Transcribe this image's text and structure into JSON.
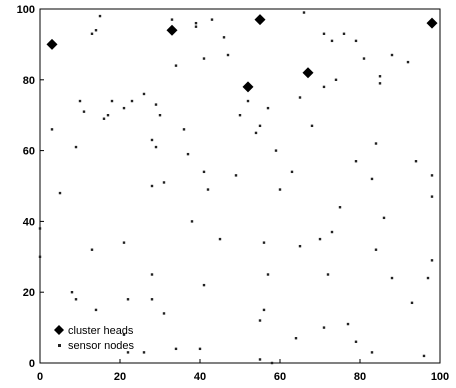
{
  "chart_data": {
    "type": "scatter",
    "title": "",
    "xlabel": "",
    "ylabel": "",
    "xlim": [
      0,
      100
    ],
    "ylim": [
      0,
      100
    ],
    "x_ticks": [
      "0",
      "20",
      "40",
      "60",
      "80",
      "100"
    ],
    "y_ticks": [
      "0",
      "20",
      "40",
      "60",
      "80",
      "100"
    ],
    "grid": false,
    "legend_position": "bottom-left",
    "series": [
      {
        "name": "cluster heads",
        "marker": "diamond",
        "color": "#000000",
        "points": [
          [
            3,
            90
          ],
          [
            33,
            94
          ],
          [
            55,
            97
          ],
          [
            52,
            78
          ],
          [
            67,
            82
          ],
          [
            98,
            96
          ]
        ]
      },
      {
        "name": "sensor nodes",
        "marker": "dot",
        "color": "#222222",
        "points": [
          [
            15,
            98
          ],
          [
            33,
            97
          ],
          [
            39,
            96
          ],
          [
            43,
            97
          ],
          [
            34,
            84
          ],
          [
            41,
            86
          ],
          [
            39,
            95
          ],
          [
            46,
            92
          ],
          [
            47,
            87
          ],
          [
            66,
            99
          ],
          [
            71,
            93
          ],
          [
            73,
            91
          ],
          [
            76,
            93
          ],
          [
            79,
            91
          ],
          [
            81,
            86
          ],
          [
            85,
            81
          ],
          [
            85,
            79
          ],
          [
            88,
            87
          ],
          [
            92,
            85
          ],
          [
            13,
            93
          ],
          [
            14,
            94
          ],
          [
            10,
            74
          ],
          [
            11,
            71
          ],
          [
            16,
            69
          ],
          [
            17,
            70
          ],
          [
            18,
            74
          ],
          [
            23,
            74
          ],
          [
            26,
            76
          ],
          [
            29,
            73
          ],
          [
            30,
            70
          ],
          [
            36,
            66
          ],
          [
            28,
            63
          ],
          [
            29,
            61
          ],
          [
            37,
            59
          ],
          [
            9,
            61
          ],
          [
            3,
            66
          ],
          [
            5,
            48
          ],
          [
            21,
            72
          ],
          [
            28,
            50
          ],
          [
            31,
            51
          ],
          [
            42,
            49
          ],
          [
            49,
            53
          ],
          [
            50,
            70
          ],
          [
            52,
            74
          ],
          [
            54,
            65
          ],
          [
            55,
            67
          ],
          [
            57,
            72
          ],
          [
            59,
            60
          ],
          [
            60,
            49
          ],
          [
            63,
            54
          ],
          [
            65,
            75
          ],
          [
            68,
            67
          ],
          [
            71,
            78
          ],
          [
            74,
            80
          ],
          [
            79,
            57
          ],
          [
            84,
            62
          ],
          [
            83,
            52
          ],
          [
            94,
            57
          ],
          [
            86,
            41
          ],
          [
            75,
            44
          ],
          [
            73,
            37
          ],
          [
            70,
            35
          ],
          [
            65,
            33
          ],
          [
            56,
            34
          ],
          [
            45,
            35
          ],
          [
            38,
            40
          ],
          [
            21,
            34
          ],
          [
            13,
            32
          ],
          [
            0,
            38
          ],
          [
            0,
            30
          ],
          [
            28,
            25
          ],
          [
            22,
            18
          ],
          [
            28,
            18
          ],
          [
            31,
            14
          ],
          [
            8,
            20
          ],
          [
            9,
            18
          ],
          [
            14,
            15
          ],
          [
            21,
            8
          ],
          [
            22,
            3
          ],
          [
            26,
            3
          ],
          [
            34,
            4
          ],
          [
            40,
            4
          ],
          [
            41,
            22
          ],
          [
            55,
            12
          ],
          [
            56,
            15
          ],
          [
            57,
            25
          ],
          [
            58,
            0
          ],
          [
            55,
            1
          ],
          [
            64,
            7
          ],
          [
            71,
            10
          ],
          [
            77,
            11
          ],
          [
            79,
            6
          ],
          [
            83,
            3
          ],
          [
            84,
            32
          ],
          [
            88,
            24
          ],
          [
            93,
            17
          ],
          [
            96,
            2
          ],
          [
            97,
            24
          ],
          [
            98,
            53
          ],
          [
            98,
            47
          ],
          [
            98,
            29
          ],
          [
            72,
            25
          ],
          [
            41,
            54
          ]
        ]
      }
    ]
  }
}
